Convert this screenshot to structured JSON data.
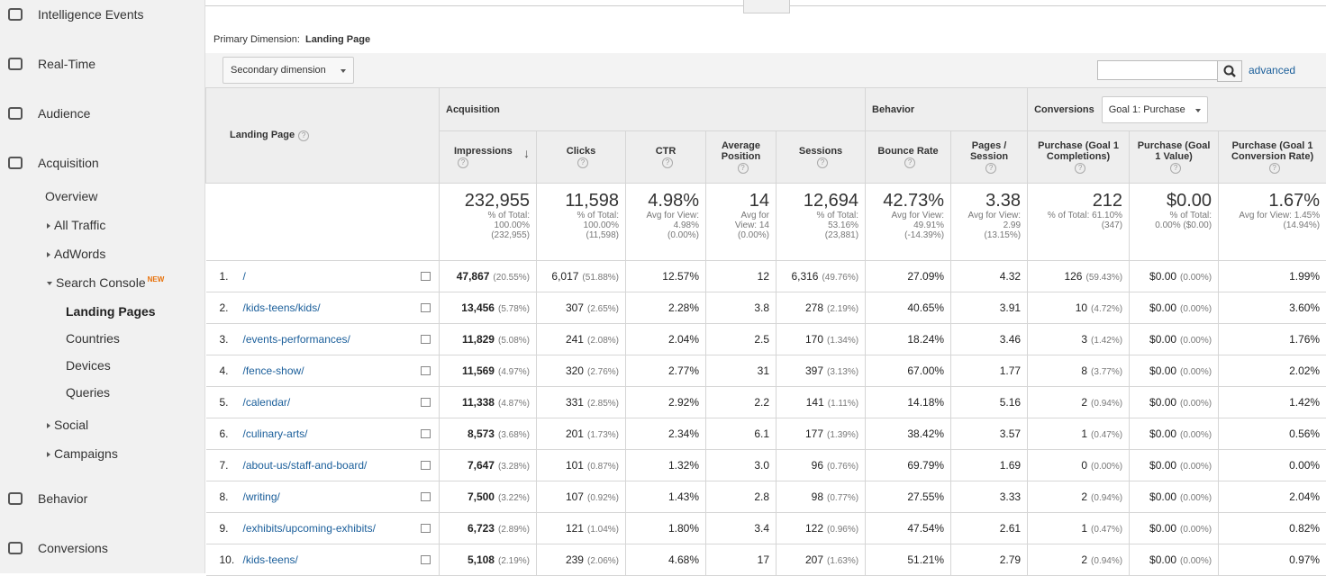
{
  "sidebar": {
    "items": [
      {
        "label": "Intelligence Events",
        "level": 0
      },
      {
        "label": "Real-Time",
        "level": 0
      },
      {
        "label": "Audience",
        "level": 0
      },
      {
        "label": "Acquisition",
        "level": 0
      },
      {
        "label": "Overview",
        "level": 1
      },
      {
        "label": "All Traffic",
        "level": 1
      },
      {
        "label": "AdWords",
        "level": 1
      },
      {
        "label": "Search Console",
        "level": 1,
        "badge": "NEW"
      },
      {
        "label": "Landing Pages",
        "level": 2
      },
      {
        "label": "Countries",
        "level": 2
      },
      {
        "label": "Devices",
        "level": 2
      },
      {
        "label": "Queries",
        "level": 2
      },
      {
        "label": "Social",
        "level": 1
      },
      {
        "label": "Campaigns",
        "level": 1
      },
      {
        "label": "Behavior",
        "level": 0
      },
      {
        "label": "Conversions",
        "level": 0
      }
    ]
  },
  "primary_dimension": {
    "label": "Primary Dimension:",
    "value": "Landing Page"
  },
  "secondary_dimension": "Secondary dimension",
  "advanced": "advanced",
  "table": {
    "dimension_header": "Landing Page",
    "groups": [
      {
        "label": "Acquisition",
        "span": 5
      },
      {
        "label": "Behavior",
        "span": 2
      },
      {
        "label": "Conversions",
        "span": 3
      }
    ],
    "goal_select": "Goal 1: Purchase",
    "columns": [
      "Impressions",
      "Clicks",
      "CTR",
      "Average Position",
      "Sessions",
      "Bounce Rate",
      "Pages / Session",
      "Purchase (Goal 1 Completions)",
      "Purchase (Goal 1 Value)",
      "Purchase (Goal 1 Conversion Rate)"
    ],
    "totals": [
      {
        "value": "232,955",
        "sub": [
          "% of Total:",
          "100.00%",
          "(232,955)"
        ]
      },
      {
        "value": "11,598",
        "sub": [
          "% of Total:",
          "100.00%",
          "(11,598)"
        ]
      },
      {
        "value": "4.98%",
        "sub": [
          "Avg for View:",
          "4.98%",
          "(0.00%)"
        ]
      },
      {
        "value": "14",
        "sub": [
          "Avg for",
          "View: 14",
          "(0.00%)"
        ]
      },
      {
        "value": "12,694",
        "sub": [
          "% of Total:",
          "53.16%",
          "(23,881)"
        ]
      },
      {
        "value": "42.73%",
        "sub": [
          "Avg for View:",
          "49.91%",
          "(-14.39%)"
        ]
      },
      {
        "value": "3.38",
        "sub": [
          "Avg for View:",
          "2.99",
          "(13.15%)"
        ]
      },
      {
        "value": "212",
        "sub": [
          "% of Total: 61.10%",
          "(347)"
        ]
      },
      {
        "value": "$0.00",
        "sub": [
          "% of Total:",
          "0.00% ($0.00)"
        ]
      },
      {
        "value": "1.67%",
        "sub": [
          "Avg for View: 1.45%",
          "(14.94%)"
        ]
      }
    ],
    "rows": [
      {
        "index": "1.",
        "page": "/",
        "cells": [
          [
            "47,867",
            "(20.55%)"
          ],
          [
            "6,017",
            "(51.88%)"
          ],
          [
            "12.57%"
          ],
          [
            "12"
          ],
          [
            "6,316",
            "(49.76%)"
          ],
          [
            "27.09%"
          ],
          [
            "4.32"
          ],
          [
            "126",
            "(59.43%)"
          ],
          [
            "$0.00",
            "(0.00%)"
          ],
          [
            "1.99%"
          ]
        ]
      },
      {
        "index": "2.",
        "page": "/kids-teens/kids/",
        "cells": [
          [
            "13,456",
            "(5.78%)"
          ],
          [
            "307",
            "(2.65%)"
          ],
          [
            "2.28%"
          ],
          [
            "3.8"
          ],
          [
            "278",
            "(2.19%)"
          ],
          [
            "40.65%"
          ],
          [
            "3.91"
          ],
          [
            "10",
            "(4.72%)"
          ],
          [
            "$0.00",
            "(0.00%)"
          ],
          [
            "3.60%"
          ]
        ]
      },
      {
        "index": "3.",
        "page": "/events-performances/",
        "cells": [
          [
            "11,829",
            "(5.08%)"
          ],
          [
            "241",
            "(2.08%)"
          ],
          [
            "2.04%"
          ],
          [
            "2.5"
          ],
          [
            "170",
            "(1.34%)"
          ],
          [
            "18.24%"
          ],
          [
            "3.46"
          ],
          [
            "3",
            "(1.42%)"
          ],
          [
            "$0.00",
            "(0.00%)"
          ],
          [
            "1.76%"
          ]
        ]
      },
      {
        "index": "4.",
        "page": "/fence-show/",
        "cells": [
          [
            "11,569",
            "(4.97%)"
          ],
          [
            "320",
            "(2.76%)"
          ],
          [
            "2.77%"
          ],
          [
            "31"
          ],
          [
            "397",
            "(3.13%)"
          ],
          [
            "67.00%"
          ],
          [
            "1.77"
          ],
          [
            "8",
            "(3.77%)"
          ],
          [
            "$0.00",
            "(0.00%)"
          ],
          [
            "2.02%"
          ]
        ]
      },
      {
        "index": "5.",
        "page": "/calendar/",
        "cells": [
          [
            "11,338",
            "(4.87%)"
          ],
          [
            "331",
            "(2.85%)"
          ],
          [
            "2.92%"
          ],
          [
            "2.2"
          ],
          [
            "141",
            "(1.11%)"
          ],
          [
            "14.18%"
          ],
          [
            "5.16"
          ],
          [
            "2",
            "(0.94%)"
          ],
          [
            "$0.00",
            "(0.00%)"
          ],
          [
            "1.42%"
          ]
        ]
      },
      {
        "index": "6.",
        "page": "/culinary-arts/",
        "cells": [
          [
            "8,573",
            "(3.68%)"
          ],
          [
            "201",
            "(1.73%)"
          ],
          [
            "2.34%"
          ],
          [
            "6.1"
          ],
          [
            "177",
            "(1.39%)"
          ],
          [
            "38.42%"
          ],
          [
            "3.57"
          ],
          [
            "1",
            "(0.47%)"
          ],
          [
            "$0.00",
            "(0.00%)"
          ],
          [
            "0.56%"
          ]
        ]
      },
      {
        "index": "7.",
        "page": "/about-us/staff-and-board/",
        "cells": [
          [
            "7,647",
            "(3.28%)"
          ],
          [
            "101",
            "(0.87%)"
          ],
          [
            "1.32%"
          ],
          [
            "3.0"
          ],
          [
            "96",
            "(0.76%)"
          ],
          [
            "69.79%"
          ],
          [
            "1.69"
          ],
          [
            "0",
            "(0.00%)"
          ],
          [
            "$0.00",
            "(0.00%)"
          ],
          [
            "0.00%"
          ]
        ]
      },
      {
        "index": "8.",
        "page": "/writing/",
        "cells": [
          [
            "7,500",
            "(3.22%)"
          ],
          [
            "107",
            "(0.92%)"
          ],
          [
            "1.43%"
          ],
          [
            "2.8"
          ],
          [
            "98",
            "(0.77%)"
          ],
          [
            "27.55%"
          ],
          [
            "3.33"
          ],
          [
            "2",
            "(0.94%)"
          ],
          [
            "$0.00",
            "(0.00%)"
          ],
          [
            "2.04%"
          ]
        ]
      },
      {
        "index": "9.",
        "page": "/exhibits/upcoming-exhibits/",
        "cells": [
          [
            "6,723",
            "(2.89%)"
          ],
          [
            "121",
            "(1.04%)"
          ],
          [
            "1.80%"
          ],
          [
            "3.4"
          ],
          [
            "122",
            "(0.96%)"
          ],
          [
            "47.54%"
          ],
          [
            "2.61"
          ],
          [
            "1",
            "(0.47%)"
          ],
          [
            "$0.00",
            "(0.00%)"
          ],
          [
            "0.82%"
          ]
        ]
      },
      {
        "index": "10.",
        "page": "/kids-teens/",
        "cells": [
          [
            "5,108",
            "(2.19%)"
          ],
          [
            "239",
            "(2.06%)"
          ],
          [
            "4.68%"
          ],
          [
            "17"
          ],
          [
            "207",
            "(1.63%)"
          ],
          [
            "51.21%"
          ],
          [
            "2.79"
          ],
          [
            "2",
            "(0.94%)"
          ],
          [
            "$0.00",
            "(0.00%)"
          ],
          [
            "0.97%"
          ]
        ]
      }
    ]
  }
}
